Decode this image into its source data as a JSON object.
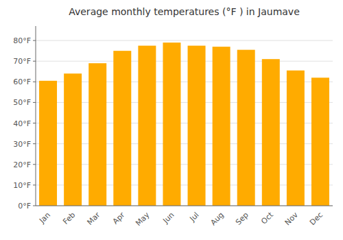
{
  "chart_data": {
    "type": "bar",
    "title": "Average monthly temperatures (°F ) in Jaumave",
    "categories": [
      "Jan",
      "Feb",
      "Mar",
      "Apr",
      "May",
      "Jun",
      "Jul",
      "Aug",
      "Sep",
      "Oct",
      "Nov",
      "Dec"
    ],
    "values": [
      60.5,
      64,
      69,
      75,
      77.5,
      79,
      77.5,
      77,
      75.5,
      71,
      65.5,
      62
    ],
    "color": "#FFAB00",
    "ylim": [
      0,
      87
    ],
    "yticks": [
      {
        "value": 0,
        "label": "0°F"
      },
      {
        "value": 10,
        "label": "10°F"
      },
      {
        "value": 20,
        "label": "20°F"
      },
      {
        "value": 30,
        "label": "30°F"
      },
      {
        "value": 40,
        "label": "40°F"
      },
      {
        "value": 50,
        "label": "50°F"
      },
      {
        "value": 60,
        "label": "60°F"
      },
      {
        "value": 70,
        "label": "70°F"
      },
      {
        "value": 80,
        "label": "80°F"
      }
    ],
    "grid": true
  }
}
